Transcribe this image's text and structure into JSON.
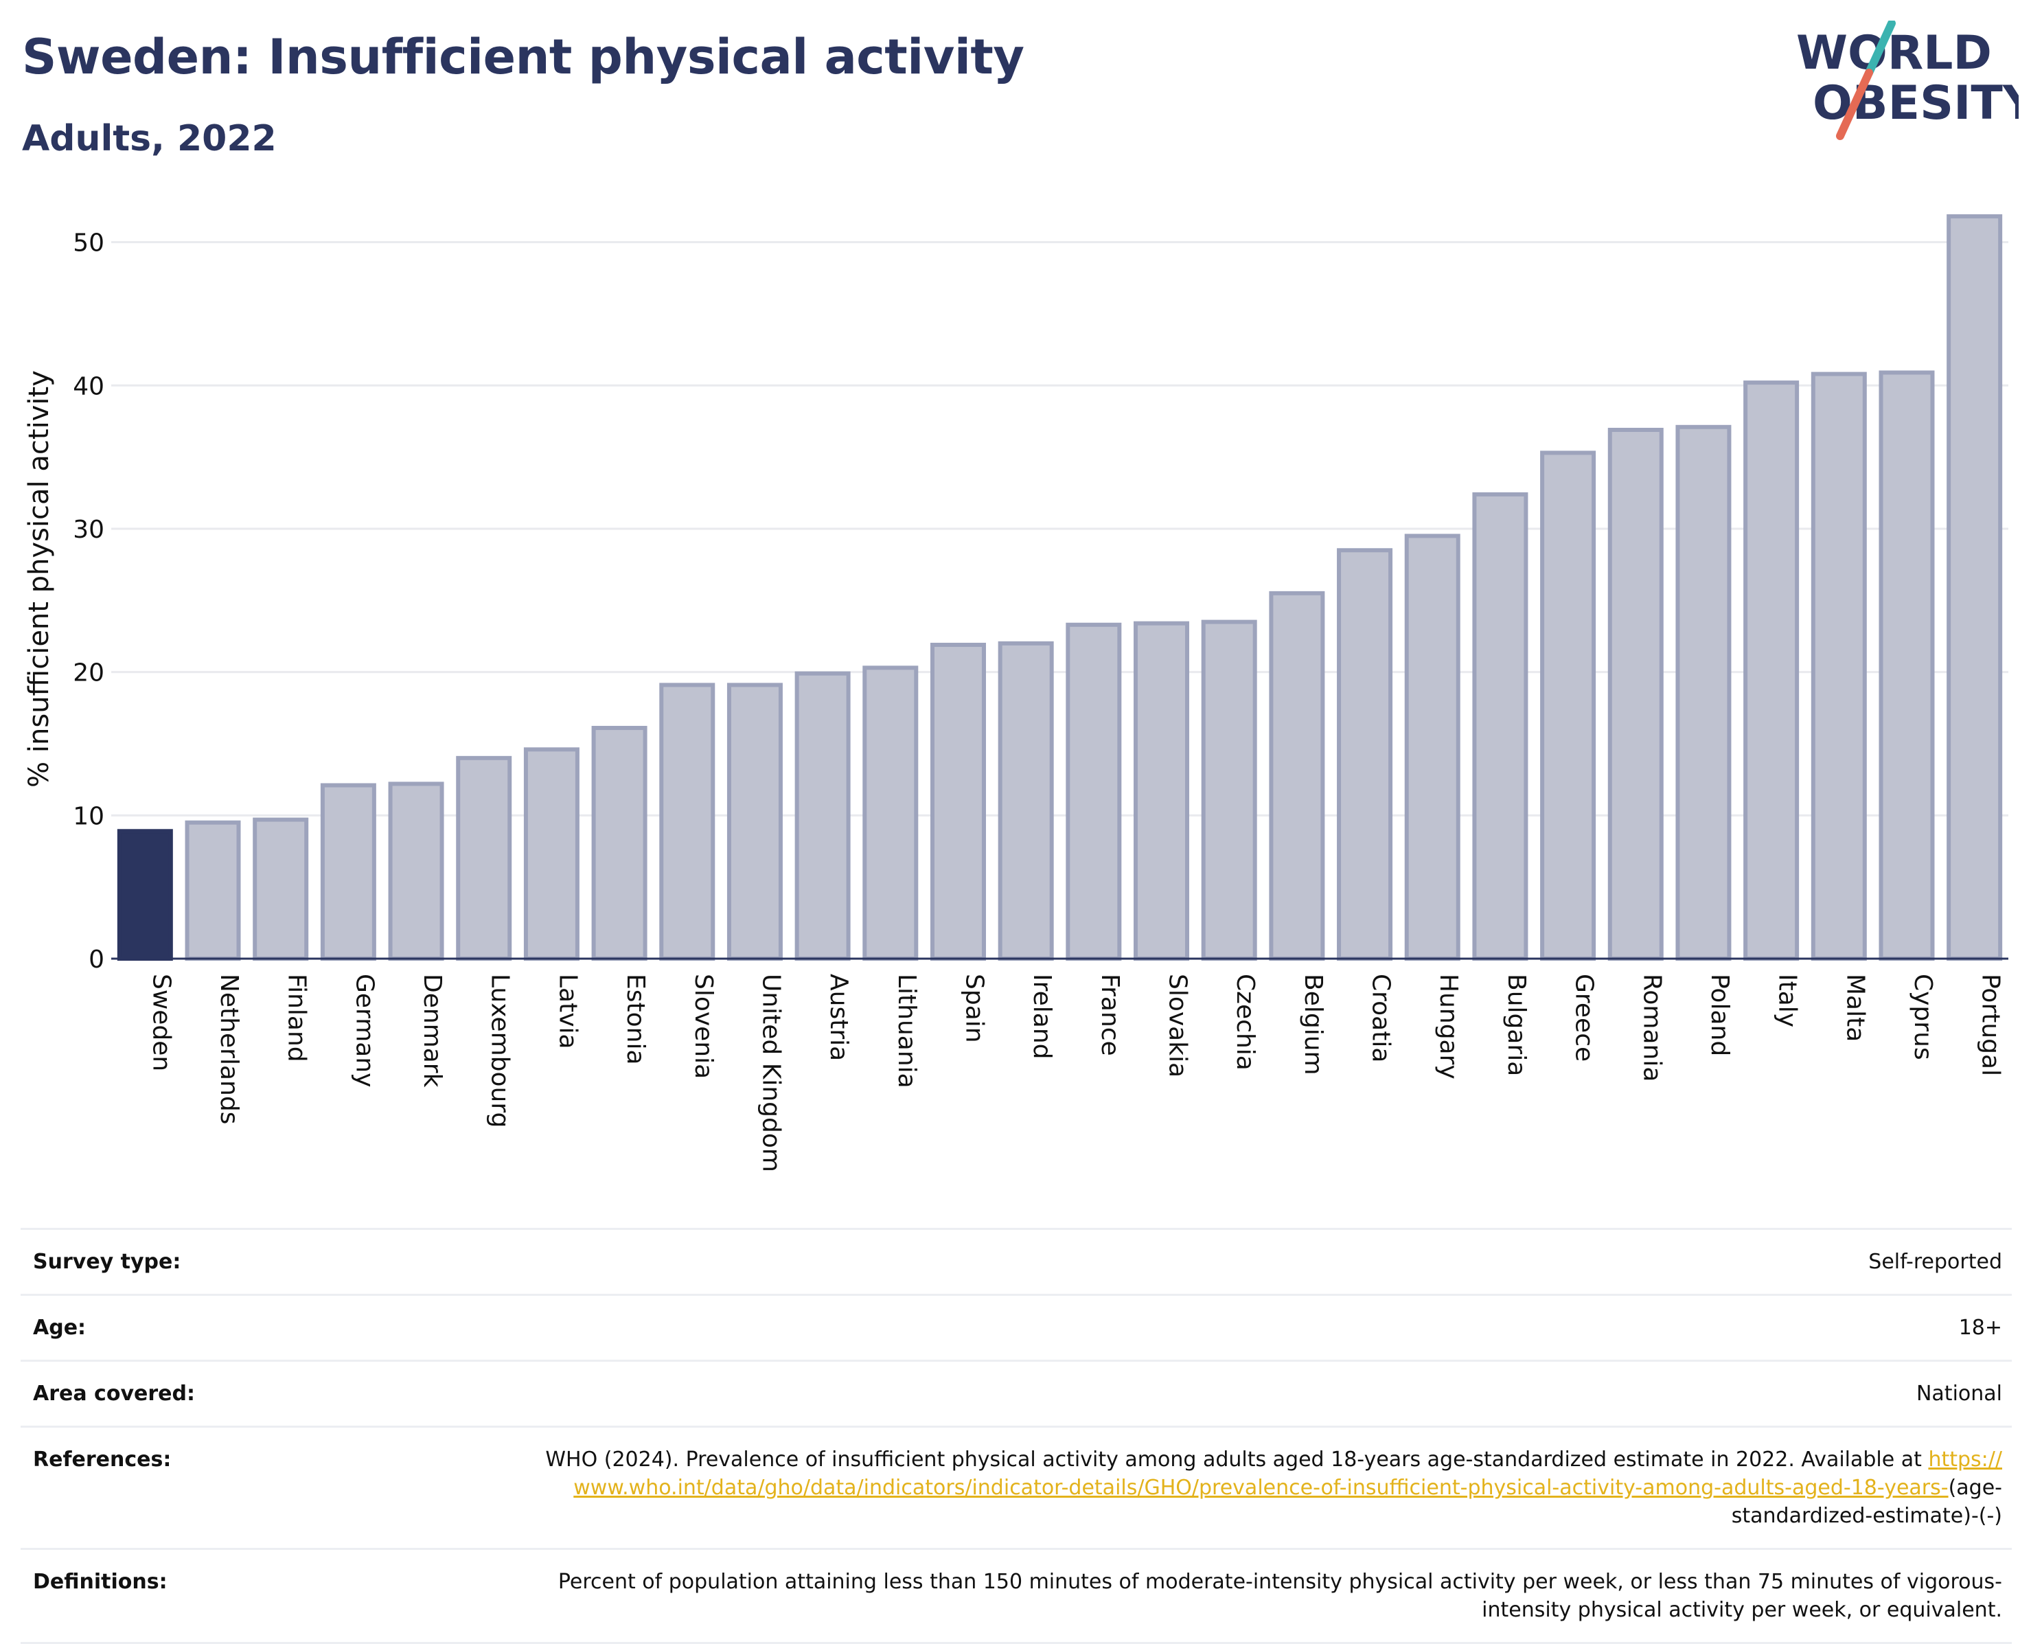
{
  "header": {
    "title": "Sweden: Insufficient physical activity",
    "subtitle": "Adults, 2022"
  },
  "logo": {
    "line1": "WORLD",
    "line2": "OBESITY",
    "colors": {
      "text": "#2b355f",
      "slash_top": "#3bb3b0",
      "slash_bottom": "#e56a54"
    }
  },
  "chart_data": {
    "type": "bar",
    "title": "",
    "xlabel": "",
    "ylabel": "% insufficient physical activity",
    "ylim": [
      0,
      53
    ],
    "yticks": [
      0,
      10,
      20,
      30,
      40,
      50
    ],
    "grid": true,
    "highlight": "Sweden",
    "colors": {
      "highlight": "#2b355f",
      "bar_fill": "#bfc2d0",
      "bar_stroke": "#9da3bc"
    },
    "categories": [
      "Sweden",
      "Netherlands",
      "Finland",
      "Germany",
      "Denmark",
      "Luxembourg",
      "Latvia",
      "Estonia",
      "Slovenia",
      "United Kingdom",
      "Austria",
      "Lithuania",
      "Spain",
      "Ireland",
      "France",
      "Slovakia",
      "Czechia",
      "Belgium",
      "Croatia",
      "Hungary",
      "Bulgaria",
      "Greece",
      "Romania",
      "Poland",
      "Italy",
      "Malta",
      "Cyprus",
      "Portugal"
    ],
    "values": [
      8.9,
      9.5,
      9.7,
      12.1,
      12.2,
      14.0,
      14.6,
      16.1,
      19.1,
      19.1,
      19.9,
      20.3,
      21.9,
      22.0,
      23.3,
      23.4,
      23.5,
      25.5,
      28.5,
      29.5,
      32.4,
      35.3,
      36.9,
      37.1,
      40.2,
      40.8,
      40.9,
      51.8
    ]
  },
  "meta": {
    "survey_type": {
      "label": "Survey type:",
      "value": "Self-reported"
    },
    "age": {
      "label": "Age:",
      "value": "18+"
    },
    "area": {
      "label": "Area covered:",
      "value": "National"
    },
    "references": {
      "label": "References:",
      "text": "WHO (2024). Prevalence of insufficient physical activity among adults aged 18-years age-standardized estimate in 2022. Available at",
      "link": "https://www.who.int/data/gho/data/indicators/indicator-details/GHO/prevalence-of-insufficient-physical-activity-among-adults-aged-18-years-",
      "suffix": "(age-standardized-estimate)-(-)"
    },
    "definitions": {
      "label": "Definitions:",
      "value": "Percent of population attaining less than 150 minutes of moderate-intensity physical activity per week, or less than 75 minutes of vigorous-intensity physical activity per week, or equivalent."
    },
    "link_color": "#e3b21b"
  }
}
